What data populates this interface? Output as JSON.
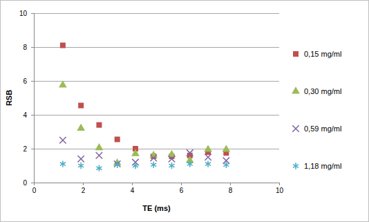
{
  "chart_data": {
    "type": "scatter",
    "x_label": "TE (ms)",
    "y_label": "RSB",
    "x": [
      1.18,
      1.92,
      2.66,
      3.4,
      4.14,
      4.88,
      5.62,
      6.36,
      7.1,
      7.84
    ],
    "series": [
      {
        "name": "0,15 mg/ml",
        "color": "#c0504d",
        "marker": "square",
        "values": [
          8.1,
          4.55,
          3.4,
          2.55,
          2.0,
          1.55,
          1.55,
          1.6,
          1.8,
          1.75
        ]
      },
      {
        "name": "0,30 mg/ml",
        "color": "#9bbb59",
        "marker": "triangle",
        "values": [
          5.75,
          3.2,
          2.05,
          1.15,
          1.7,
          1.6,
          1.65,
          1.3,
          1.95,
          1.95
        ]
      },
      {
        "name": "0,59 mg/ml",
        "color": "#8064a2",
        "marker": "x",
        "values": [
          2.5,
          1.4,
          1.6,
          1.1,
          1.2,
          1.45,
          1.4,
          1.75,
          1.5,
          1.3
        ]
      },
      {
        "name": "1,18 mg/ml",
        "color": "#4bacc6",
        "marker": "asterisk",
        "values": [
          1.1,
          1.0,
          0.85,
          1.05,
          1.0,
          1.05,
          1.0,
          1.1,
          1.1,
          1.05
        ]
      }
    ],
    "xlim": [
      0,
      10
    ],
    "xticks": [
      0,
      2,
      4,
      6,
      8,
      10
    ],
    "ylim": [
      0,
      10
    ],
    "yticks": [
      0,
      2,
      4,
      6,
      8,
      10
    ],
    "grid": "y",
    "legend": "right"
  }
}
